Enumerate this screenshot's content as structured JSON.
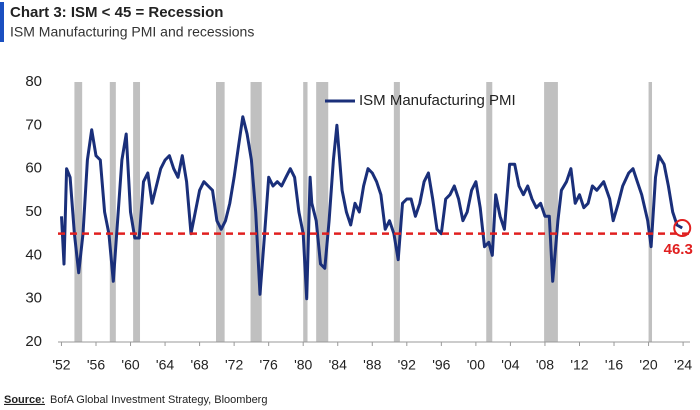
{
  "chart_data": {
    "type": "line",
    "title": "Chart 3: ISM < 45 = Recession",
    "subtitle": "ISM Manufacturing PMI and recessions",
    "source_label": "Source:",
    "source_text": "BofA Global Investment Strategy, Bloomberg",
    "x": [
      1952.0,
      1952.3,
      1952.6,
      1953.0,
      1953.5,
      1954.0,
      1954.5,
      1955.0,
      1955.5,
      1956.0,
      1956.5,
      1957.0,
      1957.5,
      1958.0,
      1958.5,
      1959.0,
      1959.5,
      1960.0,
      1960.5,
      1961.0,
      1961.5,
      1962.0,
      1962.5,
      1963.0,
      1963.5,
      1964.0,
      1964.5,
      1965.0,
      1965.5,
      1966.0,
      1966.5,
      1967.0,
      1967.5,
      1968.0,
      1968.5,
      1969.0,
      1969.5,
      1970.0,
      1970.5,
      1971.0,
      1971.5,
      1972.0,
      1972.5,
      1973.0,
      1973.5,
      1974.0,
      1974.5,
      1975.0,
      1975.5,
      1976.0,
      1976.5,
      1977.0,
      1977.5,
      1978.0,
      1978.5,
      1979.0,
      1979.5,
      1980.0,
      1980.4,
      1980.8,
      1981.0,
      1981.5,
      1982.0,
      1982.5,
      1983.0,
      1983.5,
      1983.9,
      1984.5,
      1985.0,
      1985.5,
      1986.0,
      1986.5,
      1987.0,
      1987.5,
      1988.0,
      1988.5,
      1989.0,
      1989.5,
      1990.0,
      1990.5,
      1991.0,
      1991.5,
      1992.0,
      1992.5,
      1993.0,
      1993.5,
      1994.0,
      1994.5,
      1995.0,
      1995.5,
      1996.0,
      1996.5,
      1997.0,
      1997.5,
      1998.0,
      1998.5,
      1999.0,
      1999.5,
      2000.0,
      2000.5,
      2001.0,
      2001.5,
      2001.9,
      2002.3,
      2002.8,
      2003.3,
      2003.9,
      2004.5,
      2005.0,
      2005.5,
      2006.0,
      2006.5,
      2007.0,
      2007.5,
      2008.0,
      2008.5,
      2008.9,
      2009.5,
      2009.9,
      2010.5,
      2011.0,
      2011.5,
      2012.0,
      2012.5,
      2013.0,
      2013.5,
      2014.0,
      2014.8,
      2015.5,
      2015.9,
      2016.5,
      2017.0,
      2017.7,
      2018.2,
      2018.7,
      2019.2,
      2019.9,
      2020.3,
      2020.8,
      2021.2,
      2021.8,
      2022.3,
      2022.8,
      2023.3,
      2023.9
    ],
    "series": [
      {
        "name": "ISM Manufacturing PMI",
        "color": "#1a2f7a",
        "values": [
          49,
          38,
          60,
          58,
          45,
          36,
          45,
          62,
          69,
          63,
          62,
          50,
          45,
          34,
          48,
          62,
          68,
          50,
          44,
          44,
          57,
          59,
          52,
          56,
          60,
          62,
          63,
          60,
          58,
          63,
          57,
          45,
          50,
          55,
          57,
          56,
          55,
          48,
          46,
          48,
          52,
          58,
          65,
          72,
          68,
          62,
          50,
          31,
          44,
          58,
          56,
          57,
          56,
          58,
          60,
          58,
          50,
          45,
          30,
          58,
          52,
          48,
          38,
          37,
          48,
          62,
          70,
          55,
          50,
          47,
          52,
          50,
          56,
          60,
          59,
          57,
          54,
          46,
          48,
          45,
          39,
          52,
          53,
          53,
          49,
          52,
          57,
          59,
          53,
          46,
          45,
          53,
          54,
          56,
          53,
          48,
          50,
          55,
          57,
          51,
          42,
          43,
          40,
          54,
          49,
          46,
          61,
          61,
          56,
          54,
          56,
          53,
          51,
          52,
          49,
          49,
          34,
          48,
          55,
          57,
          60,
          52,
          54,
          51,
          52,
          56,
          55,
          57,
          53,
          48,
          52,
          56,
          59,
          60,
          57,
          54,
          48,
          42,
          58,
          63,
          61,
          56,
          50,
          47,
          46.3
        ]
      }
    ],
    "recessions": [
      [
        1953.5,
        1954.4
      ],
      [
        1957.6,
        1958.3
      ],
      [
        1960.3,
        1961.1
      ],
      [
        1969.9,
        1970.9
      ],
      [
        1973.9,
        1975.2
      ],
      [
        1980.0,
        1980.5
      ],
      [
        1981.5,
        1982.9
      ],
      [
        1990.5,
        1991.2
      ],
      [
        2001.2,
        2001.9
      ],
      [
        2007.9,
        2009.5
      ],
      [
        2020.0,
        2020.4
      ]
    ],
    "recession_color": "#c0c0c0",
    "reference_line": {
      "value": 45,
      "color": "#e02020"
    },
    "annotation": {
      "label": "46.3",
      "color": "#e02020"
    },
    "xlim": [
      1951.6,
      2024.8
    ],
    "xticks": [
      {
        "value": 1952,
        "label": "'52"
      },
      {
        "value": 1956,
        "label": "'56"
      },
      {
        "value": 1960,
        "label": "'60"
      },
      {
        "value": 1964,
        "label": "'64"
      },
      {
        "value": 1968,
        "label": "'68"
      },
      {
        "value": 1972,
        "label": "'72"
      },
      {
        "value": 1976,
        "label": "'76"
      },
      {
        "value": 1980,
        "label": "'80"
      },
      {
        "value": 1984,
        "label": "'84"
      },
      {
        "value": 1988,
        "label": "'88"
      },
      {
        "value": 1992,
        "label": "'92"
      },
      {
        "value": 1996,
        "label": "'96"
      },
      {
        "value": 2000,
        "label": "'00"
      },
      {
        "value": 2004,
        "label": "'04"
      },
      {
        "value": 2008,
        "label": "'08"
      },
      {
        "value": 2012,
        "label": "'12"
      },
      {
        "value": 2016,
        "label": "'16"
      },
      {
        "value": 2020,
        "label": "'20"
      },
      {
        "value": 2024,
        "label": "'24"
      }
    ],
    "ylim": [
      20,
      80
    ],
    "yticks": [
      20,
      30,
      40,
      50,
      60,
      70,
      80
    ]
  }
}
